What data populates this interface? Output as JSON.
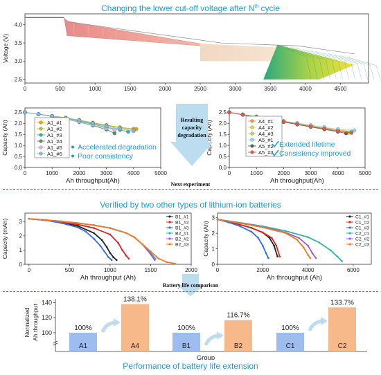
{
  "titles": {
    "top": "Changing the lower cut-off voltage after N",
    "top_sup": "th",
    "top_end": " cycle",
    "verified": "Verified by two other types of lithium-ion batteries",
    "performance": "Performance of battery life extension"
  },
  "step_labels": {
    "resulting": [
      "Resulting",
      "capacity",
      "degradation"
    ],
    "next": "Next experiment",
    "comparison": "Battery life comparison"
  },
  "colors": {
    "accent": "#1e9bd7",
    "dashed": "#2d7fc1",
    "bar_blue": "#9dbdf0",
    "bar_orange": "#f7b98a",
    "arrow": "#bcdcef"
  },
  "chart_data": [
    {
      "id": "voltage",
      "type": "area",
      "xlabel": "",
      "ylabel": "Voltage (V)",
      "xlim": [
        0,
        4900
      ],
      "ylim": [
        2.4,
        4.3
      ],
      "xticks": [
        0,
        500,
        1000,
        1500,
        2000,
        2500,
        3000,
        3500,
        4000,
        4500
      ],
      "yticks": [
        2.5,
        3.0,
        3.5,
        4.0
      ],
      "bands": [
        {
          "name": "reference",
          "x": [
            0,
            560
          ],
          "v_top": 4.2,
          "v_bottom": 4.15
        },
        {
          "name": "pink band",
          "x": [
            560,
            2800
          ],
          "v_top": [
            4.1,
            3.38
          ],
          "v_bottom": [
            3.7,
            3.38
          ]
        },
        {
          "name": "beige band",
          "x": [
            2500,
            3900
          ],
          "v_top": [
            3.48,
            3.35
          ],
          "v_bottom": [
            3.0,
            3.0
          ]
        },
        {
          "name": "green band",
          "x": [
            3400,
            4700
          ],
          "v_top": [
            3.5,
            2.9
          ],
          "v_bottom": [
            2.5,
            2.5
          ]
        }
      ]
    },
    {
      "id": "A_group",
      "type": "line",
      "xlabel": "Ah throughput(Ah)",
      "ylabel": "Capacity (Ah)",
      "xlim": [
        0,
        5000
      ],
      "ylim": [
        0,
        2.7
      ],
      "xticks": [
        0,
        1000,
        2000,
        3000,
        4000,
        5000
      ],
      "yticks": [
        0.0,
        0.5,
        1.0,
        1.5,
        2.0,
        2.5
      ],
      "annotations": [
        "Accelerated degradation",
        "Poor consistency"
      ],
      "series": [
        {
          "name": "A1_#1",
          "color": "#e6a800",
          "x": [
            0,
            500,
            1000,
            1500,
            2000,
            2500,
            3000,
            3500,
            4000,
            4100
          ],
          "y": [
            2.5,
            2.42,
            2.34,
            2.26,
            2.15,
            2.03,
            1.92,
            1.82,
            1.75,
            1.74
          ]
        },
        {
          "name": "A1_#2",
          "color": "#b9c43a",
          "x": [
            0,
            500,
            1000,
            1500,
            2000,
            2500,
            3000,
            3500,
            4000
          ],
          "y": [
            2.5,
            2.42,
            2.33,
            2.25,
            2.14,
            2.02,
            1.9,
            1.8,
            1.7
          ]
        },
        {
          "name": "A1_#3",
          "color": "#2fb59c",
          "x": [
            0,
            500,
            1000,
            1500,
            2000,
            2500,
            3000,
            3500,
            3800
          ],
          "y": [
            2.5,
            2.41,
            2.32,
            2.22,
            2.1,
            1.97,
            1.82,
            1.7,
            1.62
          ]
        },
        {
          "name": "A1_#4",
          "color": "#5d8f5d",
          "x": [
            0,
            500,
            1000,
            1500,
            2000,
            2500,
            3000,
            3300
          ],
          "y": [
            2.5,
            2.41,
            2.31,
            2.2,
            2.06,
            1.9,
            1.72,
            1.55
          ]
        },
        {
          "name": "A1_#5",
          "color": "#c9c0e6",
          "x": [
            0,
            500,
            1000,
            1500,
            2000,
            2500,
            3000,
            3300
          ],
          "y": [
            2.5,
            2.41,
            2.32,
            2.21,
            2.07,
            1.93,
            1.77,
            1.7
          ]
        },
        {
          "name": "A1_#6",
          "color": "#7fb6e8",
          "x": [
            0,
            500,
            1000,
            1500,
            2000,
            2500,
            3000,
            3500,
            4000
          ],
          "y": [
            2.5,
            2.42,
            2.33,
            2.24,
            2.13,
            2.0,
            1.87,
            1.75,
            1.65
          ]
        }
      ]
    },
    {
      "id": "A45_group",
      "type": "line",
      "xlabel": "Ah throughput(Ah)",
      "ylabel": "Capacity (Ah)",
      "xlim": [
        0,
        5000
      ],
      "ylim": [
        0,
        2.7
      ],
      "xticks": [
        0,
        1000,
        2000,
        3000,
        4000,
        5000
      ],
      "yticks": [
        0.0,
        0.5,
        1.0,
        1.5,
        2.0,
        2.5
      ],
      "annotations": [
        "Extended lifetime",
        "Consistency improved"
      ],
      "series": [
        {
          "name": "A4_#1",
          "color": "#f0a030",
          "x": [
            0,
            500,
            1000,
            1500,
            2000,
            2500,
            3000,
            3500,
            4000,
            4500
          ],
          "y": [
            2.5,
            2.4,
            2.3,
            2.2,
            2.1,
            2.0,
            1.9,
            1.8,
            1.7,
            1.63
          ]
        },
        {
          "name": "A4_#2",
          "color": "#e6d24a",
          "x": [
            0,
            500,
            1000,
            1500,
            2000,
            2500,
            3000,
            3500,
            4000,
            4500
          ],
          "y": [
            2.5,
            2.4,
            2.3,
            2.19,
            2.09,
            1.99,
            1.89,
            1.78,
            1.68,
            1.6
          ]
        },
        {
          "name": "A4_#3",
          "color": "#c9cf5a",
          "x": [
            0,
            500,
            1000,
            1500,
            2000,
            2500,
            3000,
            3500,
            4000,
            4400
          ],
          "y": [
            2.5,
            2.4,
            2.29,
            2.18,
            2.08,
            1.97,
            1.87,
            1.76,
            1.66,
            1.58
          ]
        },
        {
          "name": "A5_#1",
          "color": "#8ed7e8",
          "x": [
            0,
            500,
            1000,
            1500,
            2000,
            2500,
            3000,
            3500,
            4000,
            4600
          ],
          "y": [
            2.5,
            2.4,
            2.31,
            2.21,
            2.11,
            2.01,
            1.92,
            1.82,
            1.73,
            1.68
          ]
        },
        {
          "name": "A5_#2",
          "color": "#3d6e5a",
          "x": [
            0,
            500,
            1000,
            1500,
            2000,
            2500,
            3000,
            3500,
            4000,
            4300
          ],
          "y": [
            2.5,
            2.39,
            2.28,
            2.17,
            2.06,
            1.95,
            1.84,
            1.73,
            1.62,
            1.55
          ]
        },
        {
          "name": "A5_#3",
          "color": "#e05a4a",
          "x": [
            0,
            500,
            1000,
            1500,
            2000,
            2500,
            3000,
            3500,
            4000,
            4500
          ],
          "y": [
            2.5,
            2.39,
            2.29,
            2.18,
            2.08,
            1.97,
            1.86,
            1.76,
            1.65,
            1.57
          ]
        }
      ]
    },
    {
      "id": "B_group",
      "type": "line",
      "xlabel": "Ah throughput (Ah)",
      "ylabel": "Capacity (mAh)",
      "xlim": [
        -50,
        2000
      ],
      "ylim": [
        0,
        3.6
      ],
      "xticks": [
        0,
        500,
        1000,
        1500,
        2000
      ],
      "yticks": [
        0,
        1,
        2,
        3
      ],
      "series": [
        {
          "name": "B1_#1",
          "color": "#222222",
          "x": [
            0,
            200,
            400,
            600,
            800,
            900,
            960,
            1000,
            1040,
            1080
          ],
          "y": [
            3.2,
            3.1,
            2.95,
            2.7,
            2.2,
            1.7,
            1.2,
            0.8,
            0.5,
            0.3
          ]
        },
        {
          "name": "B1_#2",
          "color": "#e02020",
          "x": [
            0,
            200,
            400,
            600,
            800,
            1000,
            1100,
            1150,
            1200,
            1230
          ],
          "y": [
            3.2,
            3.1,
            2.95,
            2.8,
            2.55,
            2.1,
            1.5,
            1.0,
            0.6,
            0.4
          ]
        },
        {
          "name": "B1_#3",
          "color": "#2f6ee6",
          "x": [
            0,
            200,
            400,
            600,
            700,
            800,
            880,
            930,
            980,
            1020
          ],
          "y": [
            3.2,
            3.1,
            2.9,
            2.6,
            2.3,
            1.8,
            1.3,
            0.9,
            0.5,
            0.3
          ]
        },
        {
          "name": "B2_#1",
          "color": "#2fb59c",
          "x": [
            0,
            200,
            400,
            600,
            800,
            1000,
            1200,
            1300,
            1400,
            1500,
            1560
          ],
          "y": [
            3.2,
            3.12,
            3.02,
            2.9,
            2.75,
            2.55,
            2.2,
            1.9,
            1.4,
            0.8,
            0.4
          ]
        },
        {
          "name": "B2_#2",
          "color": "#9a5bd6",
          "x": [
            0,
            200,
            400,
            600,
            800,
            1000,
            1200,
            1300,
            1400,
            1500,
            1550
          ],
          "y": [
            3.2,
            3.12,
            3.02,
            2.9,
            2.75,
            2.55,
            2.2,
            1.9,
            1.4,
            0.7,
            0.3
          ]
        },
        {
          "name": "B2_#3",
          "color": "#f07a20",
          "x": [
            0,
            200,
            400,
            600,
            800,
            1000,
            1200,
            1300,
            1400,
            1500,
            1600,
            1700,
            1800
          ],
          "y": [
            3.2,
            3.12,
            3.02,
            2.9,
            2.75,
            2.55,
            2.2,
            1.9,
            1.4,
            0.9,
            0.4,
            0.15,
            0.05
          ]
        }
      ]
    },
    {
      "id": "C_group",
      "type": "line",
      "xlabel": "Ah throughput (Ah)",
      "ylabel": "Capacity (Ah)",
      "xlim": [
        0,
        6800
      ],
      "ylim": [
        0,
        3.3
      ],
      "xticks": [
        0,
        2000,
        4000,
        6000
      ],
      "yticks": [
        0,
        1,
        2,
        3
      ],
      "series": [
        {
          "name": "C1_#1",
          "color": "#222222",
          "x": [
            0,
            500,
            1000,
            1500,
            2000,
            2300,
            2500,
            2650
          ],
          "y": [
            2.9,
            2.75,
            2.55,
            2.35,
            2.05,
            1.7,
            1.2,
            0.5
          ]
        },
        {
          "name": "C1_#2",
          "color": "#e02020",
          "x": [
            0,
            500,
            1000,
            1500,
            2000,
            2400,
            2600,
            2750
          ],
          "y": [
            2.9,
            2.75,
            2.55,
            2.35,
            2.05,
            1.7,
            1.2,
            0.5
          ]
        },
        {
          "name": "C1_#3",
          "color": "#2f6ee6",
          "x": [
            0,
            500,
            1000,
            1500,
            1800,
            2000,
            2150,
            2250
          ],
          "y": [
            2.9,
            2.7,
            2.45,
            2.1,
            1.7,
            1.2,
            0.7,
            0.4
          ]
        },
        {
          "name": "C2_#1",
          "color": "#2fb59c",
          "x": [
            0,
            1000,
            2000,
            3000,
            4000,
            4500,
            5000,
            5300,
            5500
          ],
          "y": [
            2.9,
            2.68,
            2.45,
            2.15,
            1.75,
            1.4,
            0.9,
            0.5,
            0.2
          ]
        },
        {
          "name": "C2_#2",
          "color": "#9a5bd6",
          "x": [
            0,
            1000,
            2000,
            3000,
            3600,
            4000,
            4200,
            4350
          ],
          "y": [
            2.9,
            2.66,
            2.4,
            2.05,
            1.7,
            1.2,
            0.7,
            0.4
          ]
        },
        {
          "name": "C2_#3",
          "color": "#f07a20",
          "x": [
            0,
            1000,
            2000,
            3000,
            3500,
            3800,
            4000,
            4100
          ],
          "y": [
            2.9,
            2.65,
            2.38,
            2.02,
            1.6,
            1.1,
            0.6,
            0.4
          ]
        }
      ]
    },
    {
      "id": "life_bar",
      "type": "bar",
      "xlabel": "Group",
      "ylabel": "Normalized Ah throughput",
      "yticks": [
        100,
        120,
        140
      ],
      "ylim": [
        75,
        145
      ],
      "categories": [
        "A1",
        "A4",
        "B1",
        "B2",
        "C1",
        "C2"
      ],
      "values": [
        100,
        138.1,
        100,
        116.7,
        100,
        133.7
      ],
      "labels": [
        "100%",
        "138.1%",
        "100%",
        "116.7%",
        "100%",
        "133.7%"
      ],
      "colors": [
        "#9dbdf0",
        "#f7b98a",
        "#9dbdf0",
        "#f7b98a",
        "#9dbdf0",
        "#f7b98a"
      ]
    }
  ]
}
